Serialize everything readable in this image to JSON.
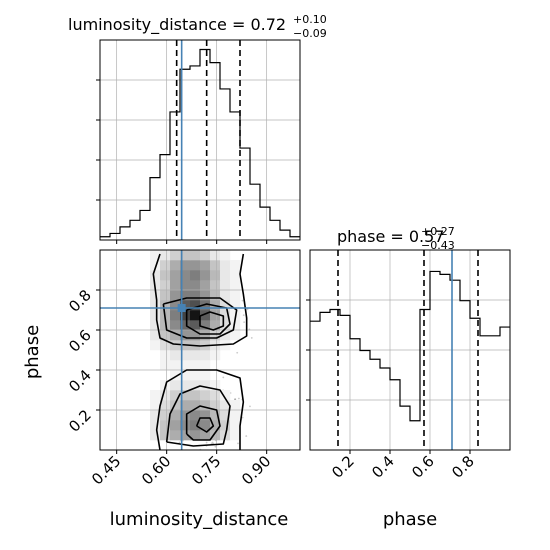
{
  "chart_data": {
    "type": "corner",
    "colors": {
      "truth": "#4682b4",
      "hist": "#000000",
      "quantile": "#000000",
      "grid": "#b0b0b0",
      "scatter": "#a0a0a0"
    },
    "parameters": [
      {
        "name": "luminosity_distance",
        "title_main": "luminosity_distance = 0.72",
        "title_plus": "+0.10",
        "title_minus": "−0.09",
        "range": [
          0.4,
          1.0
        ],
        "ticks": [
          0.45,
          0.6,
          0.75,
          0.9
        ],
        "tick_labels": [
          "0.45",
          "0.60",
          "0.75",
          "0.90"
        ],
        "quantiles": [
          0.63,
          0.72,
          0.82
        ],
        "truth": 0.645,
        "hist_bin_width": 0.03,
        "hist_counts": [
          1,
          2,
          4,
          6,
          9,
          19,
          26,
          39,
          52,
          53,
          58,
          54,
          46,
          39,
          28,
          17,
          10,
          6,
          3,
          1
        ]
      },
      {
        "name": "phase",
        "title_main": "phase = 0.57",
        "title_plus": "+0.27",
        "title_minus": "−0.43",
        "range": [
          0.0,
          1.0
        ],
        "ticks": [
          0.2,
          0.4,
          0.6,
          0.8
        ],
        "tick_labels": [
          "0.2",
          "0.4",
          "0.6",
          "0.8"
        ],
        "quantiles": [
          0.14,
          0.57,
          0.84
        ],
        "truth": 0.71,
        "hist_bin_width": 0.05,
        "hist_counts": [
          44,
          47,
          48,
          46,
          38,
          34,
          31,
          28,
          24,
          15,
          10,
          48,
          61,
          60,
          58,
          51,
          45,
          39,
          39,
          42
        ]
      }
    ],
    "density_2d": {
      "x_bin_width": 0.03,
      "y_bin_width": 0.05,
      "x_start": 0.55,
      "y_start": 0.0,
      "cells": [
        [
          0,
          0,
          0,
          0,
          0,
          0,
          0,
          0,
          0,
          0
        ],
        [
          0.1,
          0.25,
          0.35,
          0.4,
          0.45,
          0.4,
          0.3,
          0.15,
          0.05,
          0
        ],
        [
          0.1,
          0.25,
          0.4,
          0.5,
          0.55,
          0.5,
          0.35,
          0.2,
          0.05,
          0
        ],
        [
          0.1,
          0.2,
          0.35,
          0.45,
          0.5,
          0.45,
          0.3,
          0.15,
          0.05,
          0
        ],
        [
          0.05,
          0.15,
          0.25,
          0.35,
          0.35,
          0.3,
          0.2,
          0.1,
          0.05,
          0
        ],
        [
          0.05,
          0.1,
          0.2,
          0.25,
          0.25,
          0.2,
          0.15,
          0.05,
          0,
          0
        ],
        [
          0,
          0.05,
          0.1,
          0.1,
          0.1,
          0.1,
          0.05,
          0,
          0,
          0
        ],
        [
          0,
          0,
          0.05,
          0.05,
          0.05,
          0.05,
          0,
          0,
          0,
          0
        ],
        [
          0,
          0.05,
          0.05,
          0.05,
          0.05,
          0.05,
          0,
          0,
          0,
          0
        ],
        [
          0,
          0.05,
          0.1,
          0.1,
          0.1,
          0.1,
          0.05,
          0,
          0,
          0
        ],
        [
          0.05,
          0.15,
          0.2,
          0.25,
          0.25,
          0.2,
          0.1,
          0.05,
          0,
          0
        ],
        [
          0.1,
          0.25,
          0.35,
          0.45,
          0.45,
          0.35,
          0.2,
          0.1,
          0.05,
          0
        ],
        [
          0.1,
          0.3,
          0.5,
          0.65,
          0.7,
          0.55,
          0.35,
          0.15,
          0.05,
          0
        ],
        [
          0.1,
          0.3,
          0.55,
          0.8,
          1.0,
          0.7,
          0.4,
          0.15,
          0.05,
          0
        ],
        [
          0.1,
          0.3,
          0.5,
          0.7,
          0.75,
          0.6,
          0.35,
          0.15,
          0.05,
          0
        ],
        [
          0.1,
          0.25,
          0.45,
          0.55,
          0.55,
          0.45,
          0.3,
          0.1,
          0.05,
          0
        ],
        [
          0.1,
          0.2,
          0.4,
          0.5,
          0.5,
          0.4,
          0.25,
          0.1,
          0.05,
          0
        ],
        [
          0.1,
          0.25,
          0.4,
          0.5,
          0.55,
          0.45,
          0.3,
          0.1,
          0.05,
          0
        ],
        [
          0.05,
          0.2,
          0.35,
          0.45,
          0.45,
          0.4,
          0.25,
          0.1,
          0.05,
          0
        ],
        [
          0.05,
          0.1,
          0.2,
          0.25,
          0.25,
          0.2,
          0.1,
          0.05,
          0,
          0
        ]
      ]
    },
    "contours": [
      {
        "level": "outer-upper",
        "points": [
          [
            0.58,
            0.98
          ],
          [
            0.56,
            0.88
          ],
          [
            0.57,
            0.75
          ],
          [
            0.57,
            0.65
          ],
          [
            0.58,
            0.56
          ],
          [
            0.62,
            0.53
          ],
          [
            0.7,
            0.52
          ],
          [
            0.8,
            0.53
          ],
          [
            0.84,
            0.57
          ],
          [
            0.84,
            0.66
          ],
          [
            0.83,
            0.78
          ],
          [
            0.82,
            0.88
          ],
          [
            0.83,
            0.98
          ]
        ]
      },
      {
        "level": "mid-upper",
        "points": [
          [
            0.59,
            0.73
          ],
          [
            0.6,
            0.6
          ],
          [
            0.66,
            0.56
          ],
          [
            0.75,
            0.56
          ],
          [
            0.8,
            0.6
          ],
          [
            0.81,
            0.7
          ],
          [
            0.76,
            0.76
          ],
          [
            0.66,
            0.76
          ],
          [
            0.59,
            0.73
          ]
        ]
      },
      {
        "level": "inner-upper",
        "points": [
          [
            0.66,
            0.7
          ],
          [
            0.66,
            0.62
          ],
          [
            0.7,
            0.58
          ],
          [
            0.76,
            0.58
          ],
          [
            0.79,
            0.63
          ],
          [
            0.78,
            0.71
          ],
          [
            0.72,
            0.73
          ],
          [
            0.66,
            0.7
          ]
        ]
      },
      {
        "level": "core-upper",
        "points": [
          [
            0.7,
            0.67
          ],
          [
            0.7,
            0.62
          ],
          [
            0.74,
            0.6
          ],
          [
            0.77,
            0.62
          ],
          [
            0.77,
            0.67
          ],
          [
            0.73,
            0.69
          ],
          [
            0.7,
            0.67
          ]
        ]
      },
      {
        "level": "outer-lower",
        "points": [
          [
            0.58,
            0.0
          ],
          [
            0.57,
            0.1
          ],
          [
            0.58,
            0.22
          ],
          [
            0.6,
            0.34
          ],
          [
            0.66,
            0.4
          ],
          [
            0.75,
            0.4
          ],
          [
            0.82,
            0.36
          ],
          [
            0.83,
            0.24
          ],
          [
            0.82,
            0.12
          ],
          [
            0.82,
            0.0
          ]
        ]
      },
      {
        "level": "mid-lower",
        "points": [
          [
            0.6,
            0.04
          ],
          [
            0.61,
            0.18
          ],
          [
            0.64,
            0.28
          ],
          [
            0.7,
            0.32
          ],
          [
            0.76,
            0.3
          ],
          [
            0.79,
            0.22
          ],
          [
            0.78,
            0.1
          ],
          [
            0.77,
            0.03
          ],
          [
            0.68,
            0.02
          ],
          [
            0.6,
            0.04
          ]
        ]
      },
      {
        "level": "inner-lower",
        "points": [
          [
            0.66,
            0.08
          ],
          [
            0.66,
            0.18
          ],
          [
            0.7,
            0.22
          ],
          [
            0.75,
            0.2
          ],
          [
            0.76,
            0.12
          ],
          [
            0.73,
            0.05
          ],
          [
            0.68,
            0.05
          ],
          [
            0.66,
            0.08
          ]
        ]
      },
      {
        "level": "core-lower",
        "points": [
          [
            0.69,
            0.12
          ],
          [
            0.7,
            0.16
          ],
          [
            0.73,
            0.16
          ],
          [
            0.74,
            0.12
          ],
          [
            0.72,
            0.09
          ],
          [
            0.69,
            0.12
          ]
        ]
      }
    ],
    "truth_point": {
      "x": 0.645,
      "y": 0.71
    },
    "xlabel_bottom_left": "luminosity_distance",
    "xlabel_bottom_right": "phase",
    "ylabel_left": "phase"
  }
}
